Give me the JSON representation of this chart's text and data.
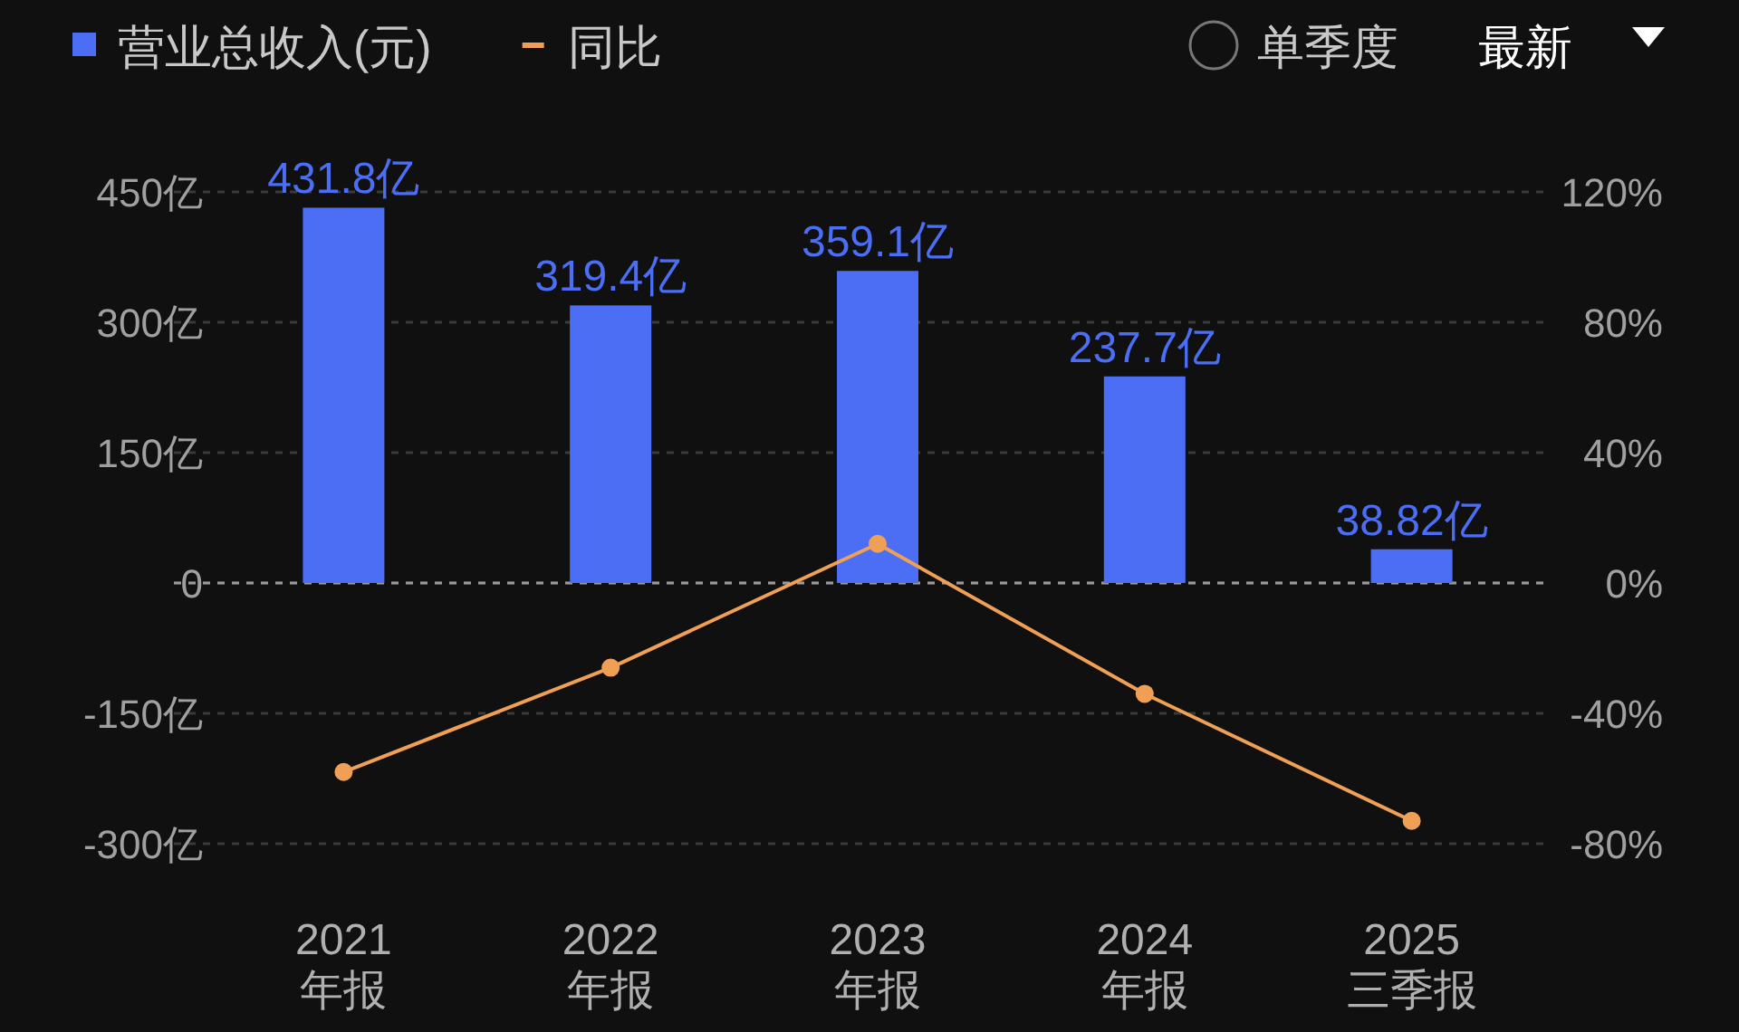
{
  "chart_data": {
    "type": "bar",
    "categories": [
      "2021\n年报",
      "2022\n年报",
      "2023\n年报",
      "2024\n年报",
      "2025\n三季报"
    ],
    "series": [
      {
        "name": "营业总收入(元)",
        "color": "#4b6ef5",
        "values": [
          431.8,
          319.4,
          359.1,
          237.7,
          38.82
        ],
        "value_labels": [
          "431.8亿",
          "319.4亿",
          "359.1亿",
          "237.7亿",
          "38.82亿"
        ]
      },
      {
        "type": "line",
        "name": "同比",
        "color": "#f0a055",
        "axis": "y2",
        "marker": "circle",
        "values": [
          -58,
          -26,
          12,
          -34,
          -73
        ]
      }
    ],
    "ylim": [
      -300,
      450
    ],
    "yticks": [
      {
        "value": -300,
        "label": "-300亿"
      },
      {
        "value": -150,
        "label": "-150亿"
      },
      {
        "value": 0,
        "label": "0"
      },
      {
        "value": 150,
        "label": "150亿"
      },
      {
        "value": 300,
        "label": "300亿"
      },
      {
        "value": 450,
        "label": "450亿"
      }
    ],
    "y2lim": [
      -80,
      120
    ],
    "y2ticks": [
      {
        "value": -80,
        "label": "-80%"
      },
      {
        "value": -40,
        "label": "-40%"
      },
      {
        "value": 0,
        "label": "0%"
      },
      {
        "value": 40,
        "label": "40%"
      },
      {
        "value": 80,
        "label": "80%"
      },
      {
        "value": 120,
        "label": "120%"
      }
    ],
    "ref_lines": [
      {
        "axis": "y",
        "value": 0,
        "color": "#9a9a9a",
        "line_style": "dashed"
      }
    ],
    "grid": "y",
    "legend": "top left",
    "annotations": [
      "单季度",
      "最新"
    ]
  }
}
